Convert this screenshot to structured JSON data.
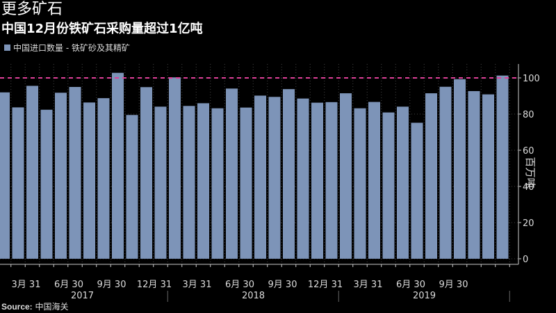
{
  "header": {
    "title": "更多矿石",
    "subtitle": "中国12月份铁矿石采购量超过1亿吨"
  },
  "legend": {
    "label": "中国进口数量 - 铁矿砂及其精矿",
    "color": "#7d94b8"
  },
  "source": {
    "label": "Source:",
    "value": "中国海关"
  },
  "chart_data": {
    "type": "bar",
    "title": "更多矿石",
    "subtitle": "中国12月份铁矿石采购量超过1亿吨",
    "ylabel": "百万吨",
    "ylim": [
      0,
      110
    ],
    "yticks": [
      0,
      20,
      40,
      60,
      80,
      100
    ],
    "reference_line": {
      "value": 100,
      "color": "#e0409a",
      "style": "dashed"
    },
    "categories": [
      "2017-01",
      "2017-02",
      "2017-03",
      "2017-04",
      "2017-05",
      "2017-06",
      "2017-07",
      "2017-08",
      "2017-09",
      "2017-10",
      "2017-11",
      "2017-12",
      "2018-01",
      "2018-02",
      "2018-03",
      "2018-04",
      "2018-05",
      "2018-06",
      "2018-07",
      "2018-08",
      "2018-09",
      "2018-10",
      "2018-11",
      "2018-12",
      "2019-01",
      "2019-02",
      "2019-03",
      "2019-04",
      "2019-05",
      "2019-06",
      "2019-07",
      "2019-08",
      "2019-09",
      "2019-10",
      "2019-11",
      "2019-12"
    ],
    "series": [
      {
        "name": "中国进口数量 - 铁矿砂及其精矿",
        "color": "#7d94b8",
        "values": [
          92.0,
          83.7,
          95.6,
          82.4,
          91.8,
          95.0,
          86.4,
          88.8,
          102.8,
          79.5,
          94.9,
          84.1,
          100.3,
          84.5,
          86.0,
          83.2,
          94.1,
          83.6,
          90.2,
          89.5,
          93.8,
          88.6,
          86.3,
          86.6,
          91.5,
          83.2,
          86.7,
          80.9,
          84.1,
          75.2,
          91.5,
          95.1,
          99.3,
          92.7,
          90.9,
          101.3
        ]
      }
    ],
    "x_tick_labels": [
      {
        "month_index": 2,
        "label": "3月 31"
      },
      {
        "month_index": 5,
        "label": "6月 30"
      },
      {
        "month_index": 8,
        "label": "9月 30"
      },
      {
        "month_index": 11,
        "label": "12月 31"
      },
      {
        "month_index": 14,
        "label": "3月 31"
      },
      {
        "month_index": 17,
        "label": "6月 30"
      },
      {
        "month_index": 20,
        "label": "9月 30"
      },
      {
        "month_index": 23,
        "label": "12月 31"
      },
      {
        "month_index": 26,
        "label": "3月 31"
      },
      {
        "month_index": 29,
        "label": "6月 30"
      },
      {
        "month_index": 32,
        "label": "9月 30"
      }
    ],
    "years": [
      "2017",
      "2018",
      "2019"
    ]
  }
}
